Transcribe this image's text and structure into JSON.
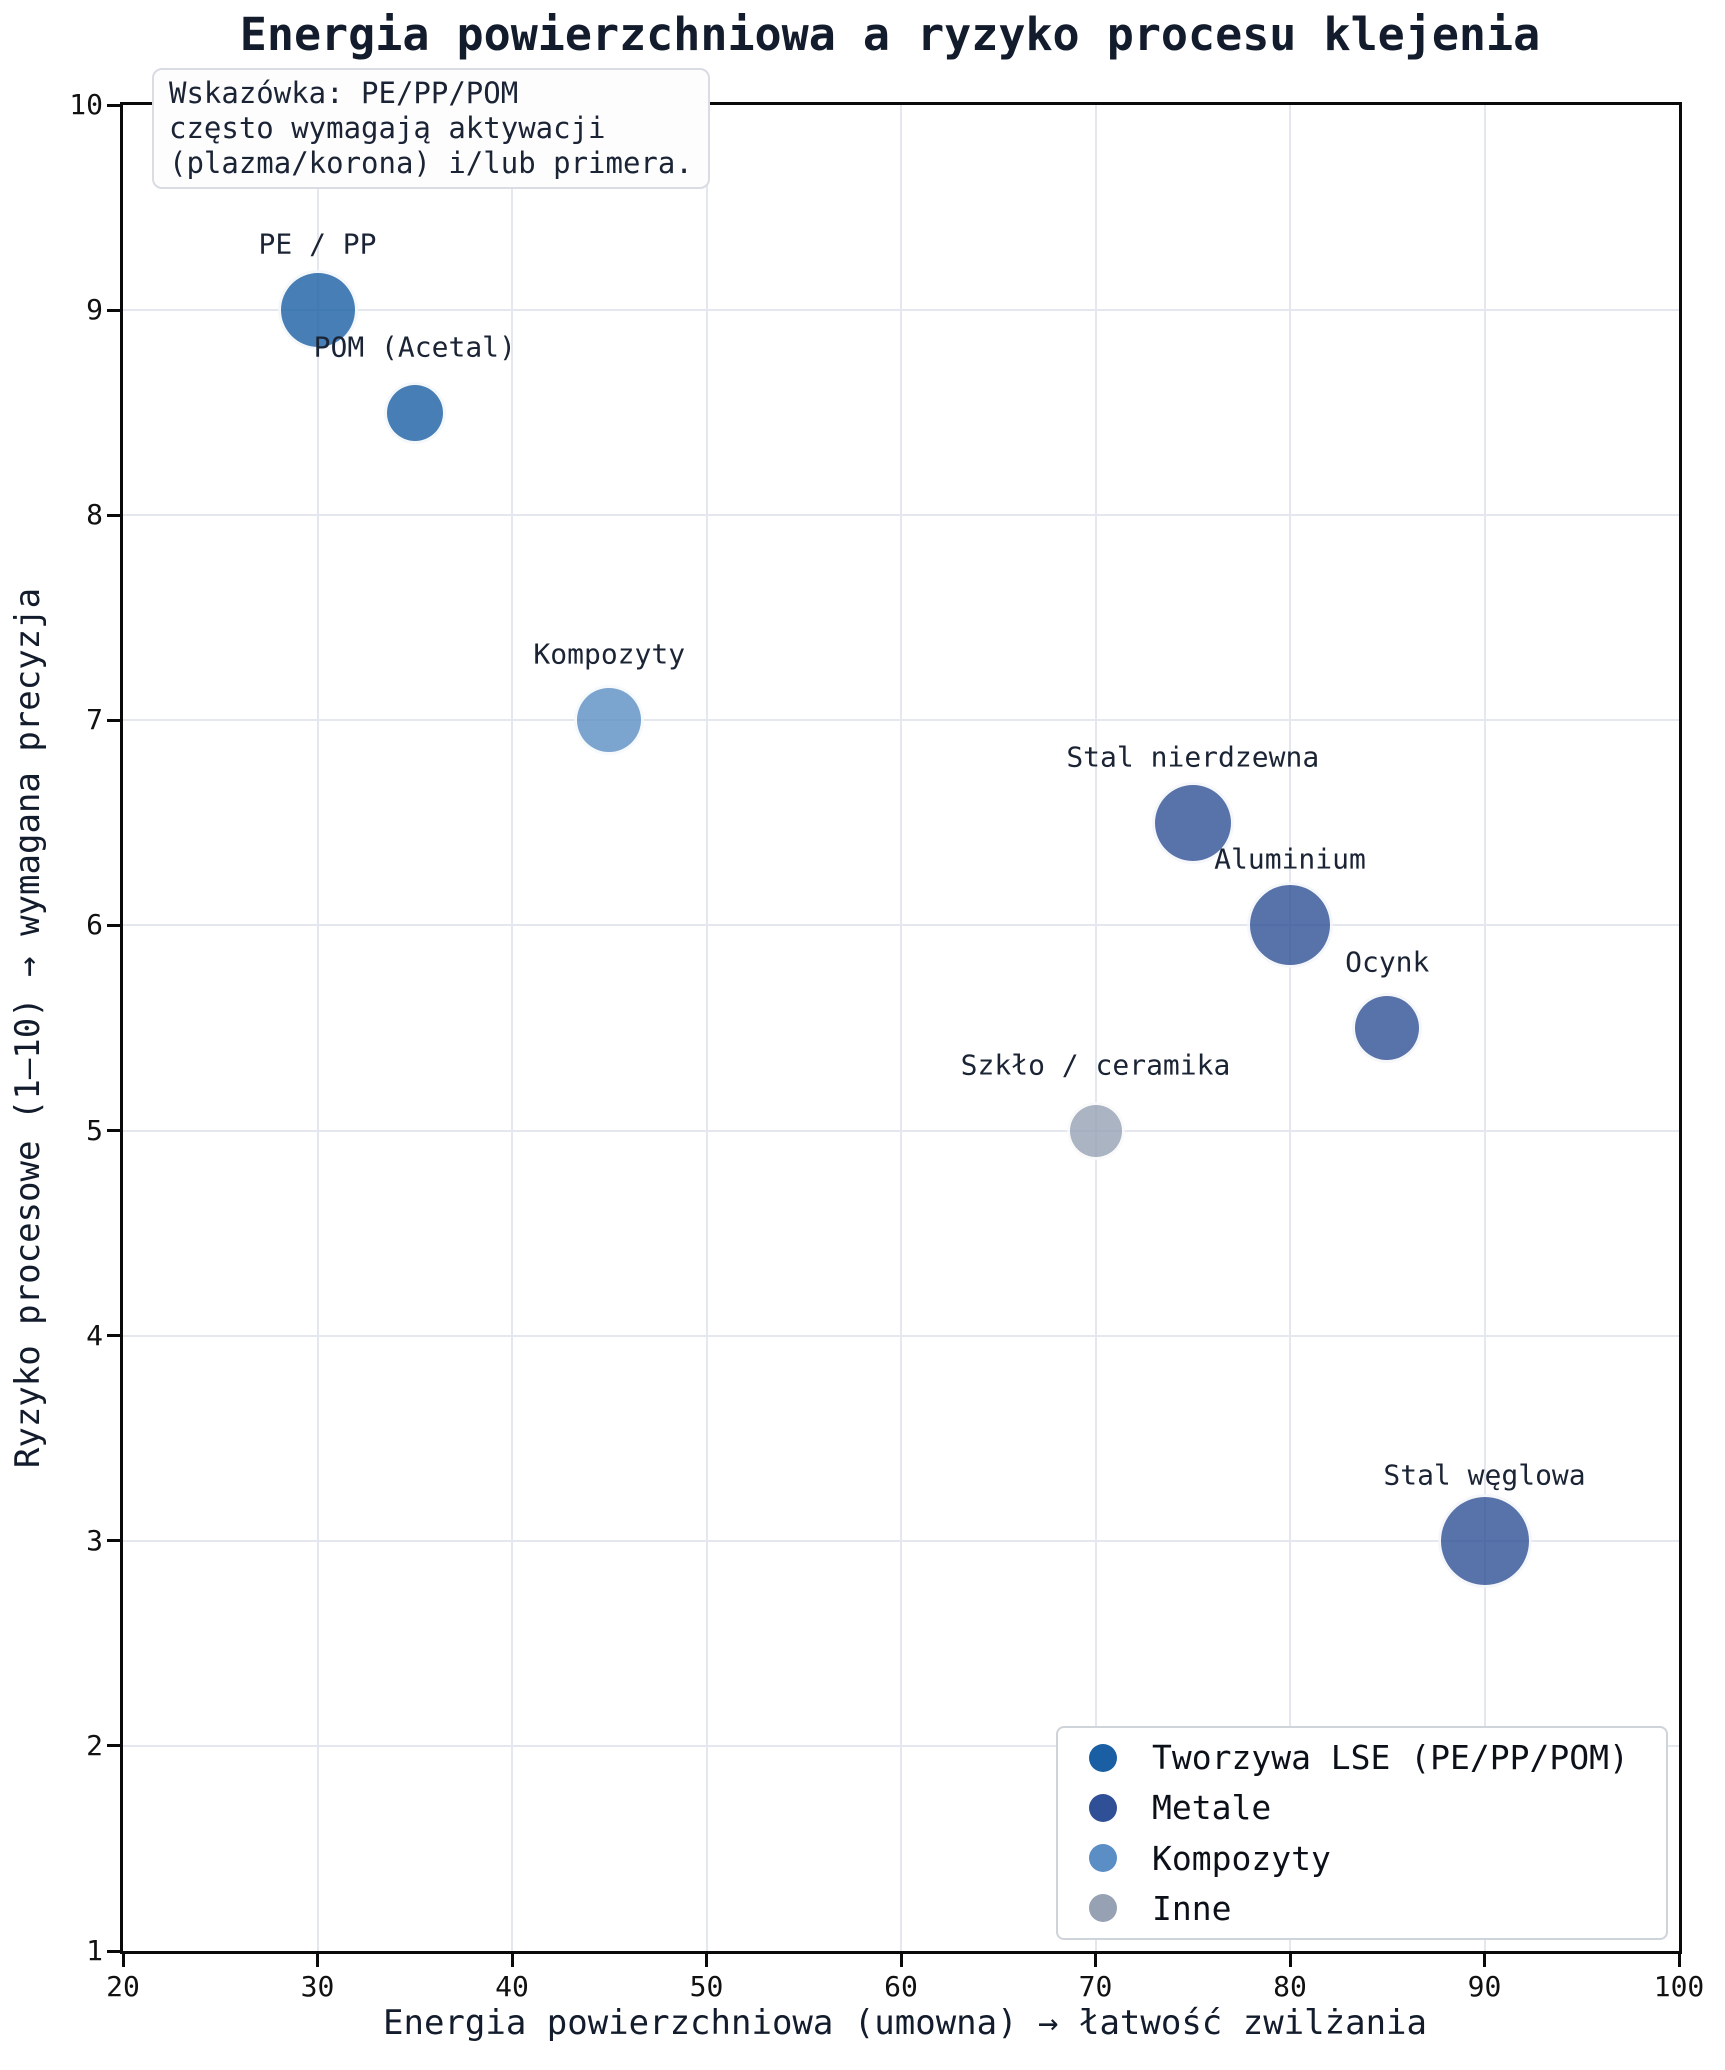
{
  "chart_data": {
    "type": "scatter",
    "title": "Energia powierzchniowa a ryzyko procesu klejenia",
    "xlabel": "Energia powierzchniowa (umowna) → łatwość zwilżania",
    "ylabel": "Ryzyko procesowe (1–10) → wymagana precyzja",
    "xlim": [
      20,
      100
    ],
    "ylim": [
      1,
      10
    ],
    "x_ticks": [
      20,
      30,
      40,
      50,
      60,
      70,
      80,
      90,
      100
    ],
    "y_ticks": [
      1,
      2,
      3,
      4,
      5,
      6,
      7,
      8,
      9,
      10
    ],
    "grid": true,
    "legend_position": "lower right",
    "point_alpha": 0.8,
    "categories": [
      {
        "key": "lse",
        "label": "Tworzywa LSE (PE/PP/POM)",
        "color": "#1a5fa4"
      },
      {
        "key": "metale",
        "label": "Metale",
        "color": "#2f4f96"
      },
      {
        "key": "kompozyty",
        "label": "Kompozyty",
        "color": "#5b8ec4"
      },
      {
        "key": "inne",
        "label": "Inne",
        "color": "#96a2b4"
      }
    ],
    "points": [
      {
        "label": "PE / PP",
        "x": 30,
        "y": 9,
        "category": "lse",
        "radius_px": 40
      },
      {
        "label": "POM (Acetal)",
        "x": 35,
        "y": 8.5,
        "category": "lse",
        "radius_px": 31
      },
      {
        "label": "Kompozyty",
        "x": 45,
        "y": 7,
        "category": "kompozyty",
        "radius_px": 35
      },
      {
        "label": "Stal nierdzewna",
        "x": 75,
        "y": 6.5,
        "category": "metale",
        "radius_px": 41
      },
      {
        "label": "Aluminium",
        "x": 80,
        "y": 6,
        "category": "metale",
        "radius_px": 43
      },
      {
        "label": "Ocynk",
        "x": 85,
        "y": 5.5,
        "category": "metale",
        "radius_px": 35
      },
      {
        "label": "Szkło / ceramika",
        "x": 70,
        "y": 5,
        "category": "inne",
        "radius_px": 29
      },
      {
        "label": "Stal węglowa",
        "x": 90,
        "y": 3,
        "category": "metale",
        "radius_px": 47
      }
    ]
  },
  "annotation": {
    "lines": [
      "Wskazówka: PE/PP/POM",
      "często wymagają aktywacji",
      "(plazma/korona) i/lub primera."
    ]
  },
  "colors": {
    "background": "#ffffff",
    "spine": "#0a0a0a",
    "grid": "#e4e7ed",
    "title_text": "#131c2c",
    "tick_text": "#111111",
    "label_text": "#1b2435",
    "annotation_bg": "#fdfdfe",
    "annotation_border": "#d9dce2",
    "legend_bg": "#ffffff",
    "legend_border": "#cfd3da"
  }
}
